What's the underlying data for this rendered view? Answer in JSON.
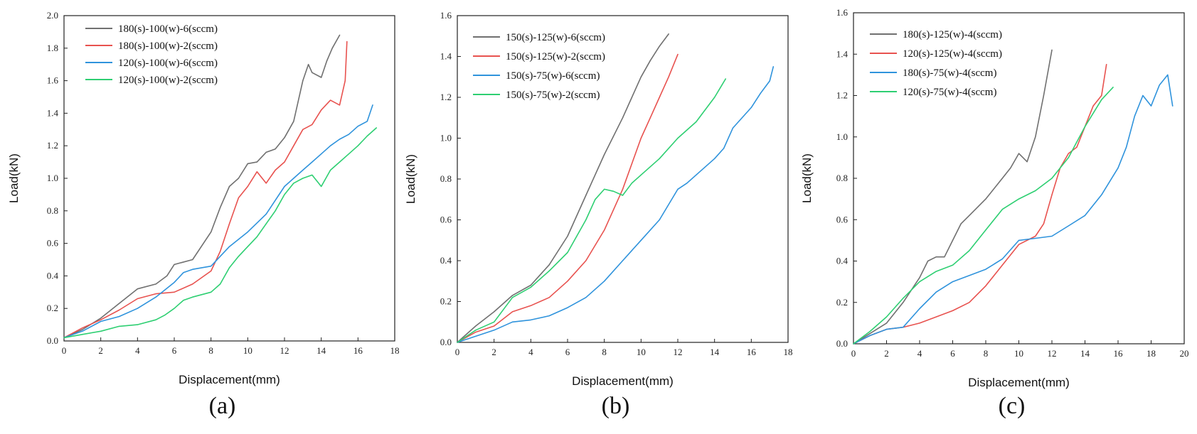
{
  "chart_data": [
    {
      "type": "line",
      "xlabel": "Displacement(mm)",
      "ylabel": "Load(kN)",
      "caption": "(a)",
      "xlim": [
        0,
        18
      ],
      "ylim": [
        0,
        2.0
      ],
      "xticks": [
        0,
        2,
        4,
        6,
        8,
        10,
        12,
        14,
        16,
        18
      ],
      "yticks": [
        0,
        0.2,
        0.4,
        0.6,
        0.8,
        1.0,
        1.2,
        1.4,
        1.6,
        1.8,
        2.0
      ],
      "ytick_labels": [
        "0.0",
        "0.2",
        "0.4",
        "0.6",
        "0.8",
        "1.0",
        "1.2",
        "1.4",
        "1.6",
        "1.8",
        "2.0"
      ],
      "legend_position": "top-left",
      "series": [
        {
          "name": "180(s)-100(w)-6(sccm)",
          "color": "#707070",
          "x": [
            0,
            1,
            2,
            3,
            4,
            5,
            5.6,
            6,
            7,
            8,
            8.5,
            9,
            9.5,
            10,
            10.5,
            11,
            11.5,
            12,
            12.5,
            13,
            13.3,
            13.5,
            14,
            14.3,
            14.6,
            15
          ],
          "y": [
            0.02,
            0.07,
            0.14,
            0.23,
            0.32,
            0.35,
            0.4,
            0.47,
            0.5,
            0.67,
            0.82,
            0.95,
            1.0,
            1.09,
            1.1,
            1.16,
            1.18,
            1.25,
            1.35,
            1.6,
            1.7,
            1.65,
            1.62,
            1.72,
            1.8,
            1.88
          ]
        },
        {
          "name": "180(s)-100(w)-2(sccm)",
          "color": "#e8524f",
          "x": [
            0,
            1,
            2,
            3,
            4,
            5,
            6,
            7,
            8,
            8.5,
            9,
            9.5,
            10,
            10.5,
            11,
            11.5,
            12,
            12.5,
            13,
            13.5,
            14,
            14.5,
            15,
            15.3,
            15.4
          ],
          "y": [
            0.02,
            0.08,
            0.13,
            0.19,
            0.26,
            0.29,
            0.3,
            0.35,
            0.43,
            0.55,
            0.72,
            0.88,
            0.95,
            1.04,
            0.97,
            1.05,
            1.1,
            1.2,
            1.3,
            1.33,
            1.42,
            1.48,
            1.45,
            1.6,
            1.84
          ]
        },
        {
          "name": "120(s)-100(w)-6(sccm)",
          "color": "#2f93dc",
          "x": [
            0,
            1,
            2,
            3,
            4,
            5,
            6,
            6.5,
            7,
            8,
            9,
            10,
            11,
            12,
            12.5,
            13,
            13.5,
            14,
            14.5,
            15,
            15.5,
            16,
            16.5,
            16.8
          ],
          "y": [
            0.02,
            0.06,
            0.12,
            0.15,
            0.2,
            0.27,
            0.36,
            0.42,
            0.44,
            0.46,
            0.58,
            0.67,
            0.78,
            0.95,
            1.0,
            1.05,
            1.1,
            1.15,
            1.2,
            1.24,
            1.27,
            1.32,
            1.35,
            1.45
          ]
        },
        {
          "name": "120(s)-100(w)-2(sccm)",
          "color": "#2ecf72",
          "x": [
            0,
            1,
            2,
            3,
            4,
            5,
            5.5,
            6,
            6.5,
            7,
            8,
            8.5,
            9,
            9.5,
            10,
            10.5,
            11,
            11.5,
            12,
            12.5,
            13,
            13.5,
            14,
            14.5,
            15,
            15.5,
            16,
            16.5,
            17
          ],
          "y": [
            0.02,
            0.04,
            0.06,
            0.09,
            0.1,
            0.13,
            0.16,
            0.2,
            0.25,
            0.27,
            0.3,
            0.35,
            0.45,
            0.52,
            0.58,
            0.64,
            0.72,
            0.8,
            0.9,
            0.97,
            1.0,
            1.02,
            0.95,
            1.05,
            1.1,
            1.15,
            1.2,
            1.26,
            1.31
          ]
        }
      ]
    },
    {
      "type": "line",
      "xlabel": "Displacement(mm)",
      "ylabel": "Load(kN)",
      "caption": "(b)",
      "xlim": [
        0,
        18
      ],
      "ylim": [
        0,
        1.6
      ],
      "xticks": [
        0,
        2,
        4,
        6,
        8,
        10,
        12,
        14,
        16,
        18
      ],
      "yticks": [
        0,
        0.2,
        0.4,
        0.6,
        0.8,
        1.0,
        1.2,
        1.4,
        1.6
      ],
      "ytick_labels": [
        "0.0",
        "0.2",
        "0.4",
        "0.6",
        "0.8",
        "1.0",
        "1.2",
        "1.4",
        "1.6"
      ],
      "legend_position": "top-left",
      "series": [
        {
          "name": "150(s)-125(w)-6(sccm)",
          "color": "#707070",
          "x": [
            0,
            1,
            2,
            3,
            4,
            5,
            6,
            7,
            8,
            9,
            10,
            10.5,
            11,
            11.5
          ],
          "y": [
            0,
            0.08,
            0.15,
            0.23,
            0.28,
            0.38,
            0.52,
            0.72,
            0.92,
            1.1,
            1.3,
            1.38,
            1.45,
            1.51
          ]
        },
        {
          "name": "150(s)-125(w)-2(sccm)",
          "color": "#e8524f",
          "x": [
            0,
            1,
            2,
            3,
            4,
            5,
            6,
            7,
            8,
            9,
            10,
            10.5,
            11,
            11.5,
            12
          ],
          "y": [
            0,
            0.05,
            0.08,
            0.15,
            0.18,
            0.22,
            0.3,
            0.4,
            0.55,
            0.75,
            1.0,
            1.1,
            1.2,
            1.3,
            1.41
          ]
        },
        {
          "name": "150(s)-75(w)-6(sccm)",
          "color": "#2f93dc",
          "x": [
            0,
            1,
            2,
            3,
            4,
            5,
            6,
            7,
            8,
            9,
            10,
            11,
            12,
            12.5,
            13,
            14,
            14.5,
            15,
            16,
            16.5,
            17,
            17.2
          ],
          "y": [
            0,
            0.03,
            0.06,
            0.1,
            0.11,
            0.13,
            0.17,
            0.22,
            0.3,
            0.4,
            0.5,
            0.6,
            0.75,
            0.78,
            0.82,
            0.9,
            0.95,
            1.05,
            1.15,
            1.22,
            1.28,
            1.35
          ]
        },
        {
          "name": "150(s)-75(w)-2(sccm)",
          "color": "#2ecf72",
          "x": [
            0,
            1,
            2,
            3,
            4,
            5,
            6,
            7,
            7.5,
            8,
            8.5,
            9,
            9.5,
            10,
            11,
            12,
            13,
            14,
            14.6
          ],
          "y": [
            0,
            0.06,
            0.1,
            0.22,
            0.27,
            0.35,
            0.44,
            0.6,
            0.7,
            0.75,
            0.74,
            0.72,
            0.78,
            0.82,
            0.9,
            1.0,
            1.08,
            1.2,
            1.29
          ]
        }
      ]
    },
    {
      "type": "line",
      "xlabel": "Displacement(mm)",
      "ylabel": "Load(kN)",
      "caption": "(c)",
      "xlim": [
        0,
        20
      ],
      "ylim": [
        0,
        1.6
      ],
      "xticks": [
        0,
        2,
        4,
        6,
        8,
        10,
        12,
        14,
        16,
        18,
        20
      ],
      "yticks": [
        0,
        0.2,
        0.4,
        0.6,
        0.8,
        1.0,
        1.2,
        1.4,
        1.6
      ],
      "ytick_labels": [
        "0.0",
        "0.2",
        "0.4",
        "0.6",
        "0.8",
        "1.0",
        "1.2",
        "1.4",
        "1.6"
      ],
      "legend_position": "top-left",
      "series": [
        {
          "name": "180(s)-125(w)-4(sccm)",
          "color": "#707070",
          "x": [
            0,
            1,
            2,
            3,
            4,
            4.5,
            5,
            5.5,
            6,
            6.5,
            7,
            8,
            9,
            9.5,
            10,
            10.5,
            11,
            11.5,
            12
          ],
          "y": [
            0,
            0.05,
            0.1,
            0.2,
            0.32,
            0.4,
            0.42,
            0.42,
            0.5,
            0.58,
            0.62,
            0.7,
            0.8,
            0.85,
            0.92,
            0.88,
            1.0,
            1.2,
            1.42
          ]
        },
        {
          "name": "120(s)-125(w)-4(sccm)",
          "color": "#e8524f",
          "x": [
            0,
            1,
            2,
            3,
            4,
            5,
            6,
            7,
            8,
            9,
            10,
            11,
            11.5,
            12,
            12.5,
            13,
            13.5,
            14,
            14.5,
            15,
            15.3
          ],
          "y": [
            0,
            0.04,
            0.07,
            0.08,
            0.1,
            0.13,
            0.16,
            0.2,
            0.28,
            0.38,
            0.48,
            0.52,
            0.58,
            0.72,
            0.85,
            0.92,
            0.95,
            1.05,
            1.15,
            1.2,
            1.35
          ]
        },
        {
          "name": "180(s)-75(w)-4(sccm)",
          "color": "#2f93dc",
          "x": [
            0,
            1,
            2,
            3,
            4,
            5,
            6,
            7,
            8,
            9,
            10,
            11,
            12,
            13,
            14,
            15,
            16,
            16.5,
            17,
            17.5,
            18,
            18.5,
            19,
            19.3
          ],
          "y": [
            0,
            0.04,
            0.07,
            0.08,
            0.17,
            0.25,
            0.3,
            0.33,
            0.36,
            0.41,
            0.5,
            0.51,
            0.52,
            0.57,
            0.62,
            0.72,
            0.85,
            0.95,
            1.1,
            1.2,
            1.15,
            1.25,
            1.3,
            1.15
          ]
        },
        {
          "name": "120(s)-75(w)-4(sccm)",
          "color": "#2ecf72",
          "x": [
            0,
            1,
            2,
            3,
            4,
            5,
            6,
            7,
            8,
            9,
            10,
            11,
            12,
            13,
            14,
            15,
            15.7
          ],
          "y": [
            0,
            0.06,
            0.13,
            0.22,
            0.3,
            0.35,
            0.38,
            0.45,
            0.55,
            0.65,
            0.7,
            0.74,
            0.8,
            0.9,
            1.05,
            1.18,
            1.24
          ]
        }
      ]
    }
  ]
}
